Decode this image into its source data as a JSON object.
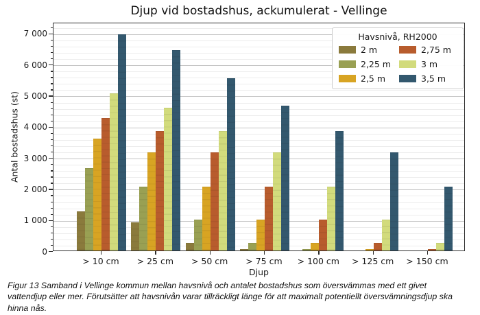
{
  "figure": {
    "caption": "Figur 13 Samband i Vellinge kommun mellan havsnivå och antalet bostadshus som översvämmas med ett givet vattendjup eller mer. Förutsätter att havsnivån varar tillräckligt länge för att maximalt potentiellt översvämningsdjup ska hinna nås."
  },
  "chart_data": {
    "type": "bar",
    "title": "Djup vid bostadshus, ackumulerat - Vellinge",
    "xlabel": "Djup",
    "ylabel": "Antal bostadshus (st)",
    "categories": [
      "> 10 cm",
      "> 25 cm",
      "> 50 cm",
      "> 75 cm",
      "> 100 cm",
      "> 125 cm",
      "> 150 cm"
    ],
    "series": [
      {
        "name": "2 m",
        "color": "#8a7a3c",
        "values": [
          1250,
          900,
          250,
          50,
          0,
          0,
          0
        ]
      },
      {
        "name": "2,25 m",
        "color": "#99a053",
        "values": [
          2650,
          2050,
          1000,
          250,
          50,
          0,
          0
        ]
      },
      {
        "name": "2,5 m",
        "color": "#d8a423",
        "values": [
          3600,
          3150,
          2050,
          1000,
          250,
          50,
          0
        ]
      },
      {
        "name": "2,75 m",
        "color": "#b85c2d",
        "values": [
          4250,
          3850,
          3150,
          2050,
          1000,
          250,
          50
        ]
      },
      {
        "name": "3 m",
        "color": "#d2db7c",
        "values": [
          5050,
          4600,
          3850,
          3150,
          2050,
          1000,
          250
        ]
      },
      {
        "name": "3,5 m",
        "color": "#33586e",
        "values": [
          6950,
          6450,
          5550,
          4650,
          3850,
          3150,
          2050
        ]
      }
    ],
    "legend": {
      "title": "Havsnivå, RH2000",
      "position": "upper right",
      "columns": 2
    },
    "ylim": [
      0,
      7350
    ],
    "y_major_ticks": [
      0,
      1000,
      2000,
      3000,
      4000,
      5000,
      6000,
      7000
    ],
    "y_tick_labels": [
      "0",
      "1 000",
      "2 000",
      "3 000",
      "4 000",
      "5 000",
      "6 000",
      "7 000"
    ],
    "y_minor_step": 200,
    "grid": "horizontal, major and minor lines"
  }
}
